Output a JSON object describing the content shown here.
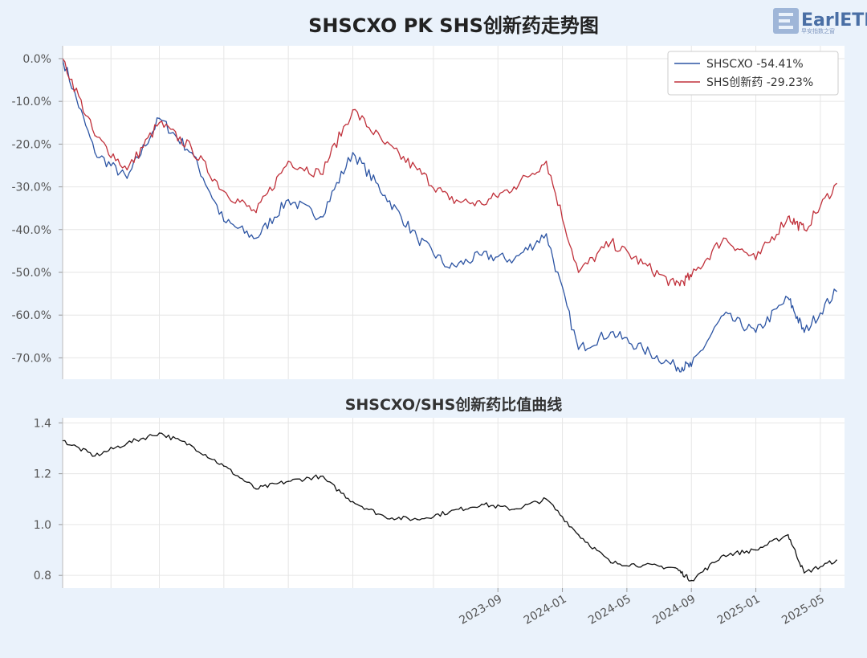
{
  "chart_title": "SHSCXO PK SHS创新药走势图",
  "logo": {
    "text": "EarlETF",
    "subtext": "早安指数之窗"
  },
  "chart_data": [
    {
      "type": "line",
      "title": "SHSCXO PK SHS创新药走势图",
      "y_unit": "percent",
      "ylim": [
        -75,
        3
      ],
      "yticks": [
        0,
        -10,
        -20,
        -30,
        -40,
        -50,
        -60,
        -70
      ],
      "ytick_labels": [
        "0.0%",
        "-10.0%",
        "-20.0%",
        "-30.0%",
        "-40.0%",
        "-50.0%",
        "-60.0%",
        "-70.0%"
      ],
      "grid": true,
      "legend_position": "top-right",
      "series": [
        {
          "name": "SHSCXO",
          "legend_label": "SHSCXO  -54.41%",
          "color": "#2c54a3",
          "x": [
            "2021-06",
            "2021-08",
            "2021-10",
            "2021-12",
            "2022-02",
            "2022-04",
            "2022-06",
            "2022-08",
            "2022-10",
            "2022-12",
            "2023-02",
            "2023-04",
            "2023-06",
            "2023-08",
            "2023-10",
            "2023-12",
            "2024-02",
            "2024-04",
            "2024-06",
            "2024-08",
            "2024-09",
            "2024-11",
            "2025-01",
            "2025-03",
            "2025-04",
            "2025-06"
          ],
          "values": [
            0,
            -22,
            -28,
            -14,
            -22,
            -38,
            -42,
            -33,
            -37,
            -22,
            -32,
            -42,
            -49,
            -46,
            -47,
            -41,
            -68,
            -64,
            -68,
            -72,
            -72,
            -60,
            -64,
            -56,
            -64,
            -54.41
          ]
        },
        {
          "name": "SHS创新药",
          "legend_label": "SHS创新药  -29.23%",
          "color": "#c0303a",
          "x": [
            "2021-06",
            "2021-08",
            "2021-10",
            "2021-12",
            "2022-02",
            "2022-04",
            "2022-06",
            "2022-08",
            "2022-10",
            "2022-12",
            "2023-02",
            "2023-04",
            "2023-06",
            "2023-08",
            "2023-10",
            "2023-12",
            "2024-02",
            "2024-04",
            "2024-06",
            "2024-08",
            "2024-09",
            "2024-11",
            "2025-01",
            "2025-03",
            "2025-04",
            "2025-06"
          ],
          "values": [
            0,
            -18,
            -26,
            -15,
            -21,
            -31,
            -36,
            -24,
            -27,
            -12,
            -20,
            -26,
            -33,
            -34,
            -30,
            -24,
            -50,
            -43,
            -48,
            -53,
            -51,
            -42,
            -47,
            -37,
            -40,
            -29.23
          ]
        }
      ]
    },
    {
      "type": "line",
      "title": "SHSCXO/SHS创新药比值曲线",
      "ylim": [
        0.75,
        1.42
      ],
      "yticks": [
        1.4,
        1.2,
        1.0,
        0.8
      ],
      "ytick_labels": [
        "1.4",
        "1.2",
        "1.0",
        "0.8"
      ],
      "grid": true,
      "series": [
        {
          "color": "#111111",
          "x": [
            "2021-06",
            "2021-08",
            "2021-10",
            "2021-12",
            "2022-02",
            "2022-04",
            "2022-06",
            "2022-08",
            "2022-10",
            "2022-12",
            "2023-02",
            "2023-04",
            "2023-06",
            "2023-08",
            "2023-10",
            "2023-12",
            "2024-02",
            "2024-04",
            "2024-06",
            "2024-08",
            "2024-09",
            "2024-11",
            "2025-01",
            "2025-03",
            "2025-04",
            "2025-06"
          ],
          "values": [
            1.33,
            1.27,
            1.32,
            1.36,
            1.31,
            1.23,
            1.14,
            1.17,
            1.19,
            1.09,
            1.03,
            1.02,
            1.05,
            1.08,
            1.06,
            1.1,
            0.96,
            0.85,
            0.84,
            0.83,
            0.78,
            0.88,
            0.9,
            0.96,
            0.81,
            0.86
          ]
        }
      ],
      "xtick_labels": [
        "2023-09",
        "2024-01",
        "2024-05",
        "2024-09",
        "2025-01",
        "2025-05"
      ]
    }
  ]
}
